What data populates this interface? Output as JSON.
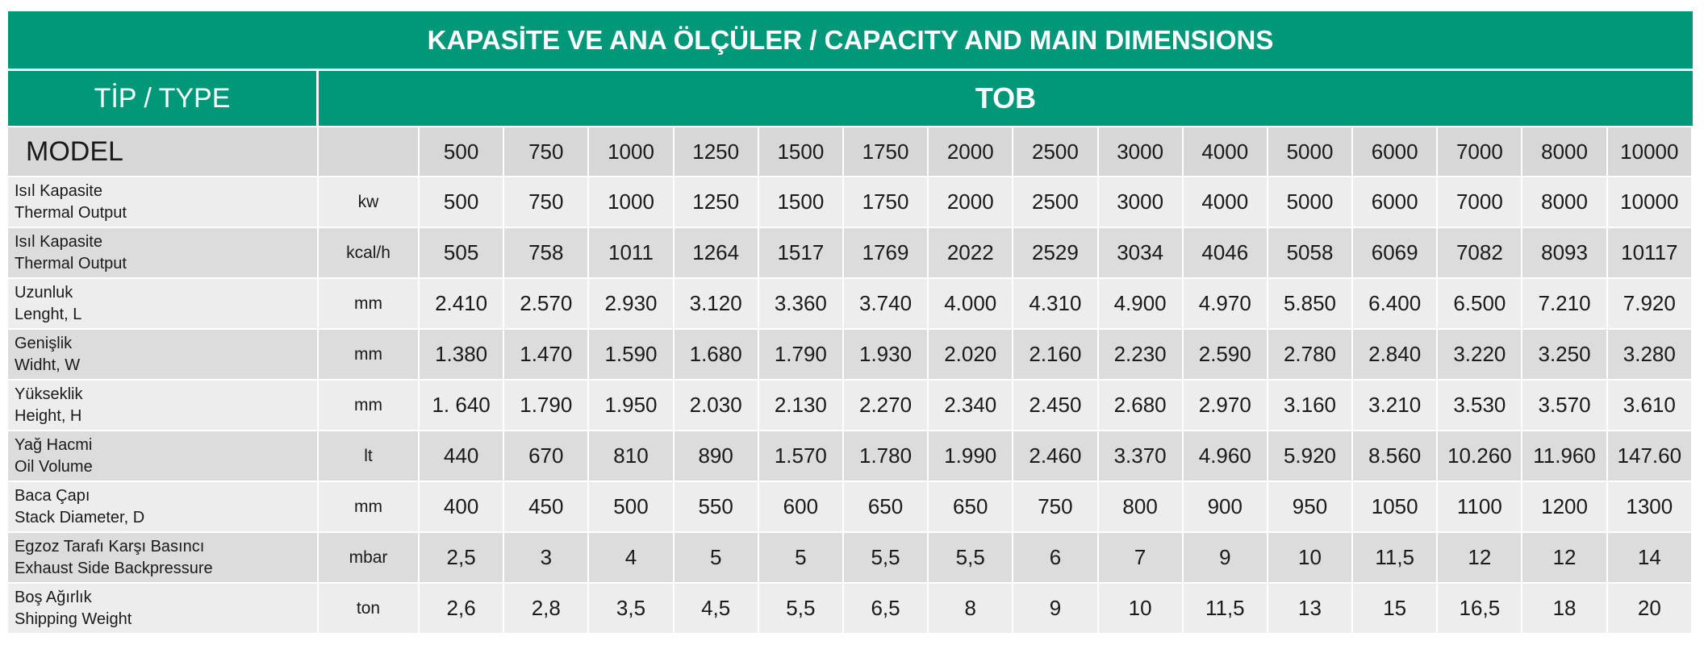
{
  "title": "KAPASİTE VE ANA ÖLÇÜLER / CAPACITY AND MAIN DIMENSIONS",
  "type_label": "TİP / TYPE",
  "type_value": "TOB",
  "model_label": "MODEL",
  "models": [
    "500",
    "750",
    "1000",
    "1250",
    "1500",
    "1750",
    "2000",
    "2500",
    "3000",
    "4000",
    "5000",
    "6000",
    "7000",
    "8000",
    "10000"
  ],
  "rows": [
    {
      "label_tr": "Isıl Kapasite",
      "label_en": "Thermal Output",
      "unit": "kw",
      "values": [
        "500",
        "750",
        "1000",
        "1250",
        "1500",
        "1750",
        "2000",
        "2500",
        "3000",
        "4000",
        "5000",
        "6000",
        "7000",
        "8000",
        "10000"
      ]
    },
    {
      "label_tr": "Isıl Kapasite",
      "label_en": "Thermal Output",
      "unit": "kcal/h",
      "values": [
        "505",
        "758",
        "1011",
        "1264",
        "1517",
        "1769",
        "2022",
        "2529",
        "3034",
        "4046",
        "5058",
        "6069",
        "7082",
        "8093",
        "10117"
      ]
    },
    {
      "label_tr": "Uzunluk",
      "label_en": "Lenght, L",
      "unit": "mm",
      "values": [
        "2.410",
        "2.570",
        "2.930",
        "3.120",
        "3.360",
        "3.740",
        "4.000",
        "4.310",
        "4.900",
        "4.970",
        "5.850",
        "6.400",
        "6.500",
        "7.210",
        "7.920"
      ]
    },
    {
      "label_tr": "Genişlik",
      "label_en": "Widht, W",
      "unit": "mm",
      "values": [
        "1.380",
        "1.470",
        "1.590",
        "1.680",
        "1.790",
        "1.930",
        "2.020",
        "2.160",
        "2.230",
        "2.590",
        "2.780",
        "2.840",
        "3.220",
        "3.250",
        "3.280"
      ]
    },
    {
      "label_tr": "Yükseklik",
      "label_en": "Height, H",
      "unit": "mm",
      "values": [
        "1. 640",
        "1.790",
        "1.950",
        "2.030",
        "2.130",
        "2.270",
        "2.340",
        "2.450",
        "2.680",
        "2.970",
        "3.160",
        "3.210",
        "3.530",
        "3.570",
        "3.610"
      ]
    },
    {
      "label_tr": "Yağ Hacmi",
      "label_en": "Oil Volume",
      "unit": "lt",
      "values": [
        "440",
        "670",
        "810",
        "890",
        "1.570",
        "1.780",
        "1.990",
        "2.460",
        "3.370",
        "4.960",
        "5.920",
        "8.560",
        "10.260",
        "11.960",
        "147.60"
      ]
    },
    {
      "label_tr": "Baca Çapı",
      "label_en": "Stack Diameter, D",
      "unit": "mm",
      "values": [
        "400",
        "450",
        "500",
        "550",
        "600",
        "650",
        "650",
        "750",
        "800",
        "900",
        "950",
        "1050",
        "1100",
        "1200",
        "1300"
      ]
    },
    {
      "label_tr": "Egzoz Tarafı Karşı Basıncı",
      "label_en": "Exhaust Side Backpressure",
      "unit": "mbar",
      "values": [
        "2,5",
        "3",
        "4",
        "5",
        "5",
        "5,5",
        "5,5",
        "6",
        "7",
        "9",
        "10",
        "11,5",
        "12",
        "12",
        "14"
      ]
    },
    {
      "label_tr": "Boş Ağırlık",
      "label_en": "Shipping Weight",
      "unit": "ton",
      "values": [
        "2,6",
        "2,8",
        "3,5",
        "4,5",
        "5,5",
        "6,5",
        "8",
        "9",
        "10",
        "11,5",
        "13",
        "15",
        "16,5",
        "18",
        "20"
      ]
    }
  ]
}
